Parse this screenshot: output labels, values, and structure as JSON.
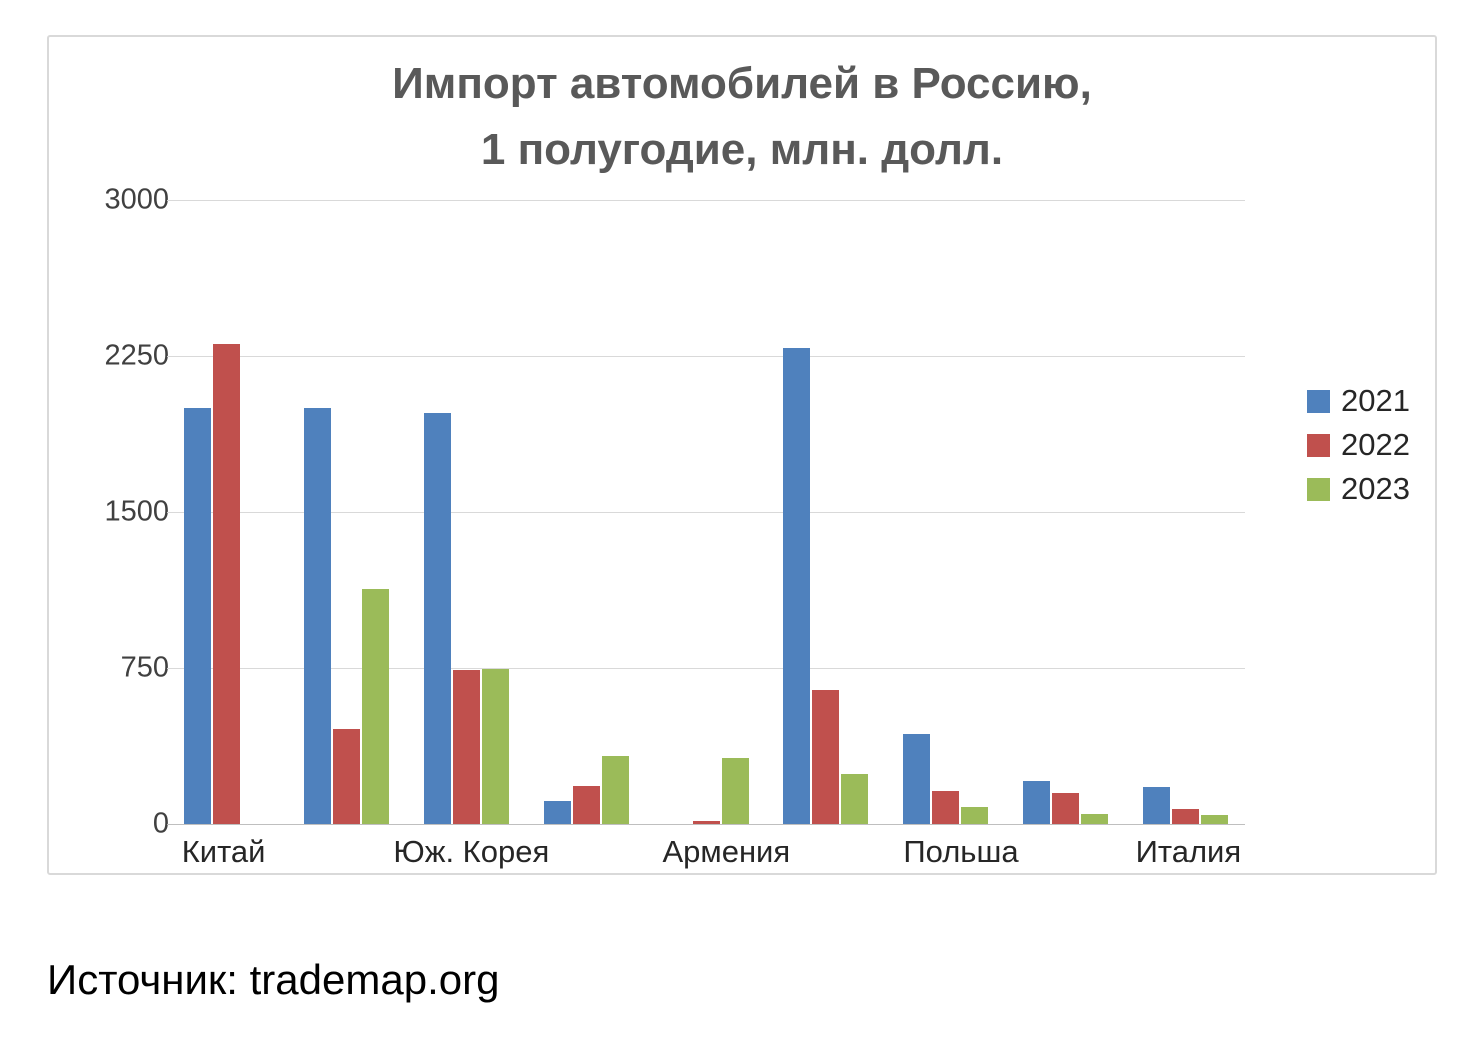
{
  "page": {
    "source_label": "Источник: trademap.org"
  },
  "chart_data": {
    "type": "bar",
    "title": "Импорт автомобилей в Россию, 1 полугодие, млн. долл.",
    "title_line1": "Импорт автомобилей в Россию,",
    "title_line2": "1 полугодие, млн. долл.",
    "xlabel": "",
    "ylabel": "",
    "categories": [
      "Китай",
      "",
      "Юж. Корея",
      "",
      "Армения",
      "",
      "Польша",
      "",
      "Италия"
    ],
    "series": [
      {
        "name": "2021",
        "color": "#4F81BD",
        "values": [
          2000,
          2000,
          1975,
          110,
          0,
          2290,
          435,
          205,
          180
        ]
      },
      {
        "name": "2022",
        "color": "#C0504D",
        "values": [
          2310,
          455,
          740,
          185,
          15,
          645,
          160,
          150,
          70
        ]
      },
      {
        "name": "2023",
        "color": "#9BBB59",
        "values": [
          0,
          1130,
          745,
          325,
          315,
          240,
          80,
          50,
          45
        ]
      }
    ],
    "ylim": [
      0,
      3000
    ],
    "yticks": [
      0,
      750,
      1500,
      2250,
      3000
    ],
    "grid": true,
    "legend_position": "right"
  }
}
